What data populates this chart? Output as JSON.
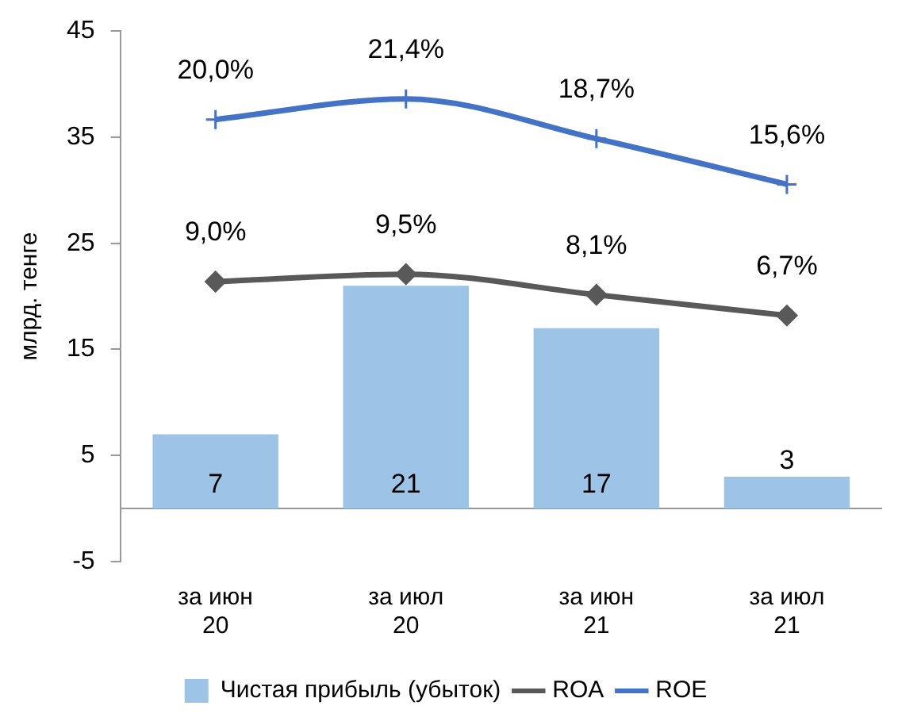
{
  "chart_data": {
    "type": "bar",
    "ylabel": "млрд. тенге",
    "categories": [
      "за июн 20",
      "за июл 20",
      "за июн 21",
      "за июл 21"
    ],
    "ylim": [
      -5,
      45
    ],
    "yticks": [
      -5,
      5,
      15,
      25,
      35,
      45
    ],
    "y2lim": [
      -10,
      26
    ],
    "grid": false,
    "legend": "bottom",
    "series": [
      {
        "name": "Чистая прибыль (убыток)",
        "color": "#9dc3e6",
        "values": [
          7,
          21,
          17,
          3
        ],
        "value_labels": [
          "7",
          "21",
          "17",
          "3"
        ]
      },
      {
        "name": "ROA",
        "type": "line",
        "axis": "y2",
        "marker": "diamond",
        "color": "#595959",
        "values": [
          9.0,
          9.5,
          8.1,
          6.7
        ],
        "value_labels": [
          "9,0%",
          "9,5%",
          "8,1%",
          "6,7%"
        ]
      },
      {
        "name": "ROE",
        "type": "line",
        "axis": "y2",
        "marker": "cross",
        "color": "#4472c4",
        "values": [
          20.0,
          21.4,
          18.7,
          15.6
        ],
        "value_labels": [
          "20,0%",
          "21,4%",
          "18,7%",
          "15,6%"
        ]
      }
    ]
  }
}
